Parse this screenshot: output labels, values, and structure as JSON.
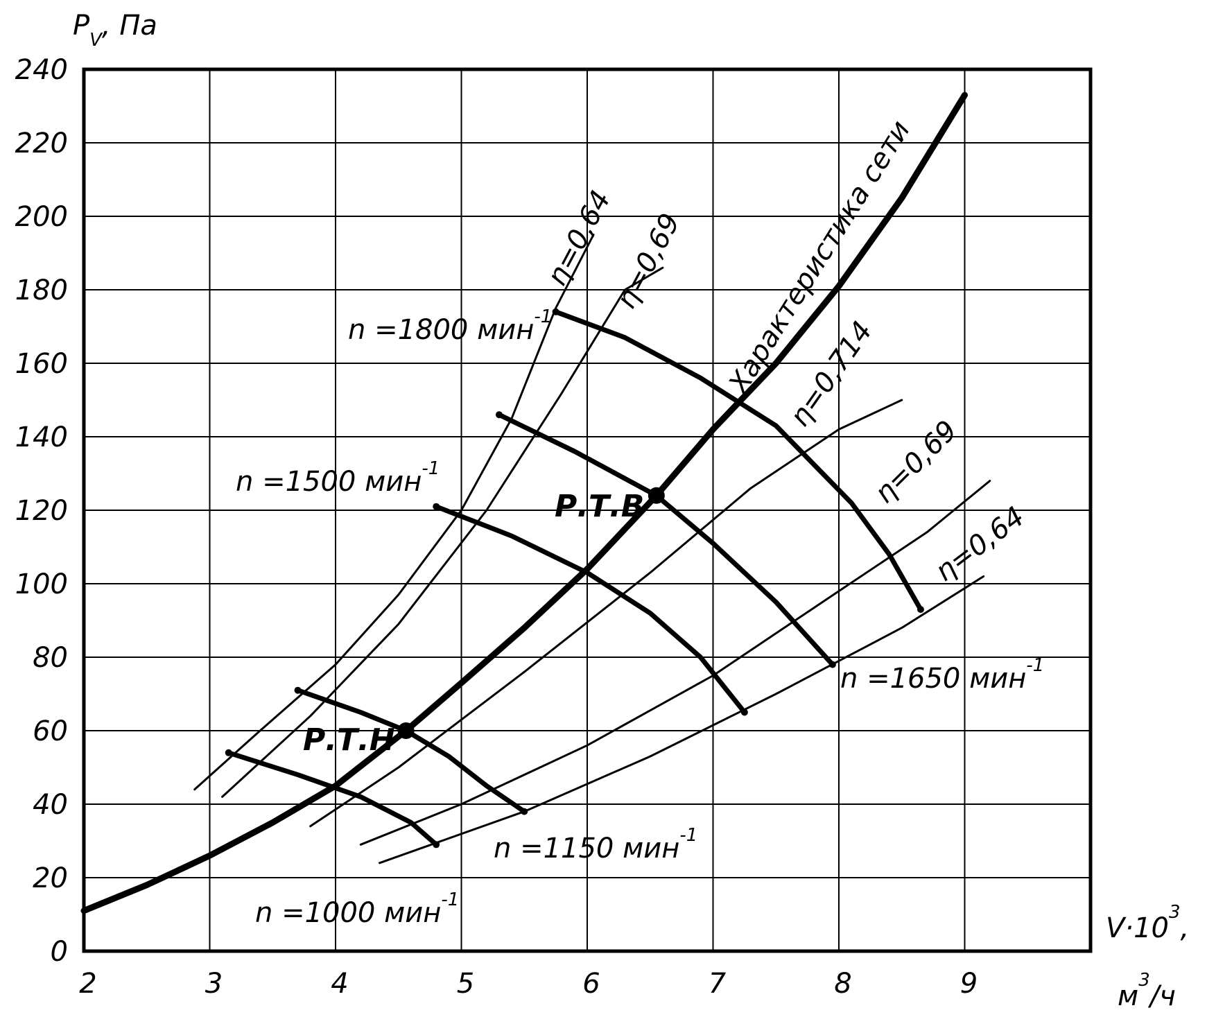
{
  "chart_data": {
    "type": "line",
    "xlabel": "V·10",
    "xlabel_sup": "3",
    "xunit": "м",
    "xunit_sup": "3",
    "xunit_tail": "/ч",
    "ylabel": "P",
    "ylabel_sub": "V",
    "yunit": ", Па",
    "xlim": [
      2,
      10
    ],
    "ylim": [
      0,
      240
    ],
    "xticks": [
      2,
      3,
      4,
      5,
      6,
      7,
      8,
      9
    ],
    "yticks": [
      0,
      20,
      40,
      60,
      80,
      100,
      120,
      140,
      160,
      180,
      200,
      220,
      240
    ],
    "grid": true,
    "network": {
      "label": "Характеристика сети",
      "points": [
        [
          2.0,
          11
        ],
        [
          2.5,
          18
        ],
        [
          3.0,
          26
        ],
        [
          3.5,
          35
        ],
        [
          4.0,
          45
        ],
        [
          4.56,
          60
        ],
        [
          5.0,
          73
        ],
        [
          5.5,
          88
        ],
        [
          6.0,
          104
        ],
        [
          6.55,
          124
        ],
        [
          7.0,
          142
        ],
        [
          7.5,
          160
        ],
        [
          8.0,
          181
        ],
        [
          8.5,
          205
        ],
        [
          9.0,
          233
        ]
      ]
    },
    "speed_curves": [
      {
        "name": "n =1000 мин",
        "points": [
          [
            3.15,
            54
          ],
          [
            3.7,
            48
          ],
          [
            4.2,
            42
          ],
          [
            4.6,
            35
          ],
          [
            4.8,
            29
          ]
        ]
      },
      {
        "name": "n =1150 мин",
        "points": [
          [
            3.7,
            71
          ],
          [
            4.2,
            65
          ],
          [
            4.56,
            60
          ],
          [
            4.9,
            53
          ],
          [
            5.2,
            45
          ],
          [
            5.5,
            38
          ]
        ]
      },
      {
        "name": "n =1500 мин",
        "points": [
          [
            4.8,
            121
          ],
          [
            5.4,
            113
          ],
          [
            6.0,
            103
          ],
          [
            6.5,
            92
          ],
          [
            6.9,
            80
          ],
          [
            7.25,
            65
          ]
        ]
      },
      {
        "name": "n =1650 мин",
        "points": [
          [
            5.3,
            146
          ],
          [
            5.9,
            136
          ],
          [
            6.55,
            124
          ],
          [
            7.0,
            111
          ],
          [
            7.5,
            95
          ],
          [
            7.95,
            78
          ]
        ]
      },
      {
        "name": "n =1800 мин",
        "points": [
          [
            5.75,
            174
          ],
          [
            6.3,
            167
          ],
          [
            6.9,
            156
          ],
          [
            7.5,
            143
          ],
          [
            8.1,
            122
          ],
          [
            8.4,
            108
          ],
          [
            8.65,
            93
          ]
        ]
      }
    ],
    "efficiency_curves": [
      {
        "name": "η=0,64",
        "points": [
          [
            2.88,
            44
          ],
          [
            3.4,
            60
          ],
          [
            4.0,
            78
          ],
          [
            4.5,
            97
          ],
          [
            5.0,
            120
          ],
          [
            5.4,
            145
          ],
          [
            5.75,
            175
          ],
          [
            6.05,
            195
          ]
        ]
      },
      {
        "name": "η=0,69",
        "points": [
          [
            3.1,
            42
          ],
          [
            3.8,
            64
          ],
          [
            4.5,
            89
          ],
          [
            5.2,
            120
          ],
          [
            5.8,
            152
          ],
          [
            6.3,
            180
          ],
          [
            6.6,
            186
          ]
        ]
      },
      {
        "name": "η=0,714",
        "points": [
          [
            3.8,
            34
          ],
          [
            4.5,
            50
          ],
          [
            5.5,
            76
          ],
          [
            6.5,
            103
          ],
          [
            7.3,
            126
          ],
          [
            8.0,
            142
          ],
          [
            8.5,
            150
          ]
        ]
      },
      {
        "name": "η=0,69",
        "points": [
          [
            4.2,
            29
          ],
          [
            5.0,
            40
          ],
          [
            6.0,
            56
          ],
          [
            7.0,
            75
          ],
          [
            8.0,
            98
          ],
          [
            8.7,
            114
          ],
          [
            9.2,
            128
          ]
        ]
      },
      {
        "name": "η=0,64",
        "points": [
          [
            4.35,
            24
          ],
          [
            5.5,
            38
          ],
          [
            6.5,
            53
          ],
          [
            7.5,
            70
          ],
          [
            8.5,
            88
          ],
          [
            9.15,
            102
          ]
        ]
      }
    ],
    "operating_points": [
      {
        "label": "Р.Т.Н",
        "x": 4.56,
        "y": 60
      },
      {
        "label": "Р.Т.В",
        "x": 6.55,
        "y": 124
      }
    ],
    "annotations": {
      "n1000": {
        "text": "n =1000 мин",
        "sup": "-1"
      },
      "n1150": {
        "text": "n =1150 мин",
        "sup": "-1"
      },
      "n1500": {
        "text": "n =1500 мин",
        "sup": "-1"
      },
      "n1650": {
        "text": "n =1650 мин",
        "sup": "-1"
      },
      "n1800": {
        "text": "n =1800 мин",
        "sup": "-1"
      },
      "eta_064_top": "η=0,64",
      "eta_069_top": "η=0,69",
      "eta_0714": "η=0,714",
      "eta_069_right": "η=0,69",
      "eta_064_right": "η=0,64",
      "network": "Характеристика сети",
      "rtn": "Р.Т.Н",
      "rtv": "Р.Т.В"
    }
  }
}
